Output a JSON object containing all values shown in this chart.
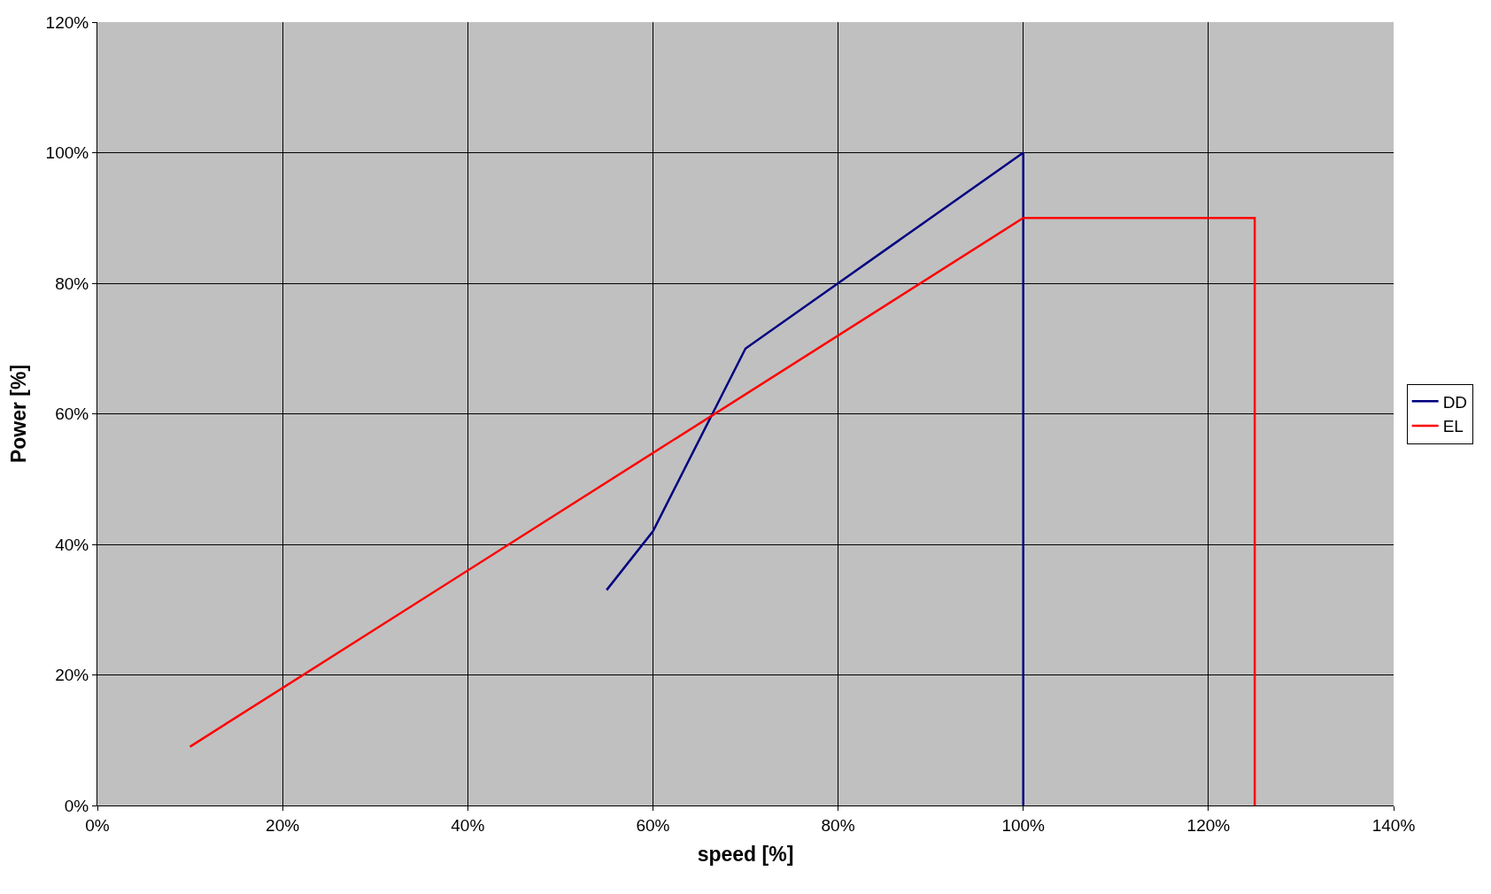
{
  "chart_data": {
    "type": "line",
    "xlabel": "speed [%]",
    "ylabel": "Power [%]",
    "xlim": [
      0,
      140
    ],
    "ylim": [
      0,
      120
    ],
    "xticks": [
      {
        "value": 0,
        "label": "0%"
      },
      {
        "value": 20,
        "label": "20%"
      },
      {
        "value": 40,
        "label": "40%"
      },
      {
        "value": 60,
        "label": "60%"
      },
      {
        "value": 80,
        "label": "80%"
      },
      {
        "value": 100,
        "label": "100%"
      },
      {
        "value": 120,
        "label": "120%"
      },
      {
        "value": 140,
        "label": "140%"
      }
    ],
    "yticks": [
      {
        "value": 0,
        "label": "0%"
      },
      {
        "value": 20,
        "label": "20%"
      },
      {
        "value": 40,
        "label": "40%"
      },
      {
        "value": 60,
        "label": "60%"
      },
      {
        "value": 80,
        "label": "80%"
      },
      {
        "value": 100,
        "label": "100%"
      },
      {
        "value": 120,
        "label": "120%"
      }
    ],
    "series": [
      {
        "name": "DD",
        "color": "#000080",
        "x": [
          55,
          60,
          70,
          80,
          100,
          100
        ],
        "values": [
          33,
          42,
          70,
          80,
          100,
          0
        ]
      },
      {
        "name": "EL",
        "color": "#ff0000",
        "x": [
          10,
          100,
          125,
          125
        ],
        "values": [
          9,
          90,
          90,
          0
        ]
      }
    ],
    "grid": true,
    "legend": "right",
    "marker": "none",
    "line_style": "solid"
  }
}
